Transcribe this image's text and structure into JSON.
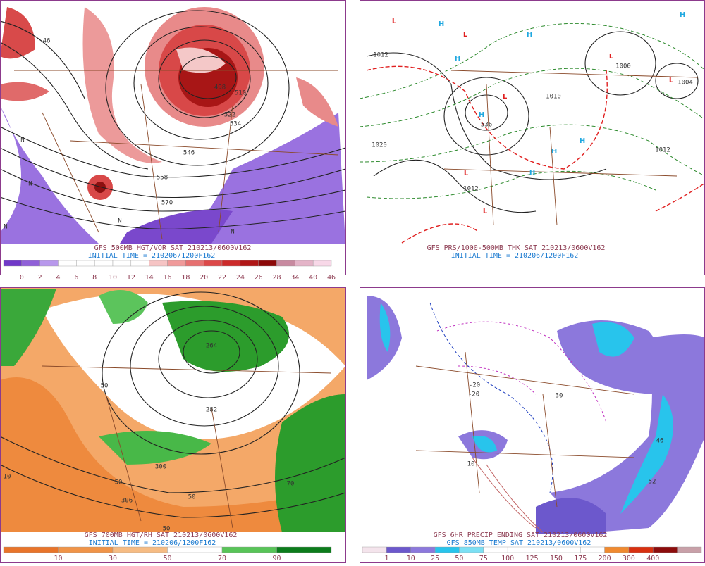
{
  "panels": [
    {
      "captions": [
        "GFS 500MB HGT/VOR SAT 210213/0600V162",
        "INITIAL TIME = 210206/1200F162"
      ],
      "map_labels": [
        "46",
        "498",
        "510",
        "522",
        "534",
        "546",
        "558",
        "570",
        "N",
        "N",
        "N",
        "N",
        "N"
      ],
      "colorbar": {
        "labels": [
          0,
          2,
          4,
          6,
          8,
          10,
          12,
          14,
          16,
          18,
          20,
          22,
          24,
          26,
          28,
          34,
          40,
          46
        ],
        "colors": [
          "#7038c8",
          "#9060d8",
          "#b898ec",
          "#ffffff",
          "#ffffff",
          "#ffffff",
          "#ffffff",
          "#ffffff",
          "#f6c4c4",
          "#f09a9a",
          "#e67070",
          "#dc4848",
          "#cc2a2a",
          "#b01616",
          "#8c0808",
          "#c88aa0",
          "#e4b4c8",
          "#f8d8e8"
        ]
      }
    },
    {
      "captions": [
        "GFS PRS/1000-500MB THK SAT 210213/0600V162",
        "INITIAL TIME = 210206/1200F162"
      ],
      "map_labels": [
        "1012",
        "1020",
        "1000",
        "1004",
        "1012",
        "1012",
        "1010",
        "536"
      ],
      "highs": [
        "H",
        "H",
        "H",
        "H",
        "H",
        "H",
        "H",
        "H"
      ],
      "lows": [
        "L",
        "L",
        "L",
        "L",
        "L",
        "L",
        "L"
      ]
    },
    {
      "captions": [
        "GFS 700MB HGT/RH SAT 210213/0600V162",
        "INITIAL TIME = 210206/1200F162"
      ],
      "map_labels": [
        "264",
        "282",
        "300",
        "306",
        "50",
        "50",
        "50",
        "50",
        "10",
        "70"
      ],
      "colorbar": {
        "labels": [
          10,
          30,
          50,
          70,
          90
        ],
        "colors": [
          "#e8742a",
          "#f09448",
          "#f6bc84",
          "#ffffff",
          "#58c458",
          "#0c7c1c"
        ]
      }
    },
    {
      "captions": [
        "GFS 6HR PRECIP ENDING SAT 210213/0600V162",
        "GFS 850MB TEMP SAT 210213/0600V162"
      ],
      "map_labels": [
        "-20",
        "-20",
        "30",
        "46",
        "52",
        "10"
      ],
      "colorbar": {
        "labels": [
          1,
          10,
          25,
          50,
          75,
          100,
          125,
          150,
          175,
          200,
          300,
          400
        ],
        "colors": [
          "#f4e4ec",
          "#6c58cc",
          "#8c78dc",
          "#28c4ec",
          "#7ce0f4",
          "#ffffff",
          "#ffffff",
          "#ffffff",
          "#ffffff",
          "#ffffff",
          "#f08a30",
          "#d83010",
          "#8c0c0c",
          "#c8a0a8"
        ]
      }
    }
  ]
}
